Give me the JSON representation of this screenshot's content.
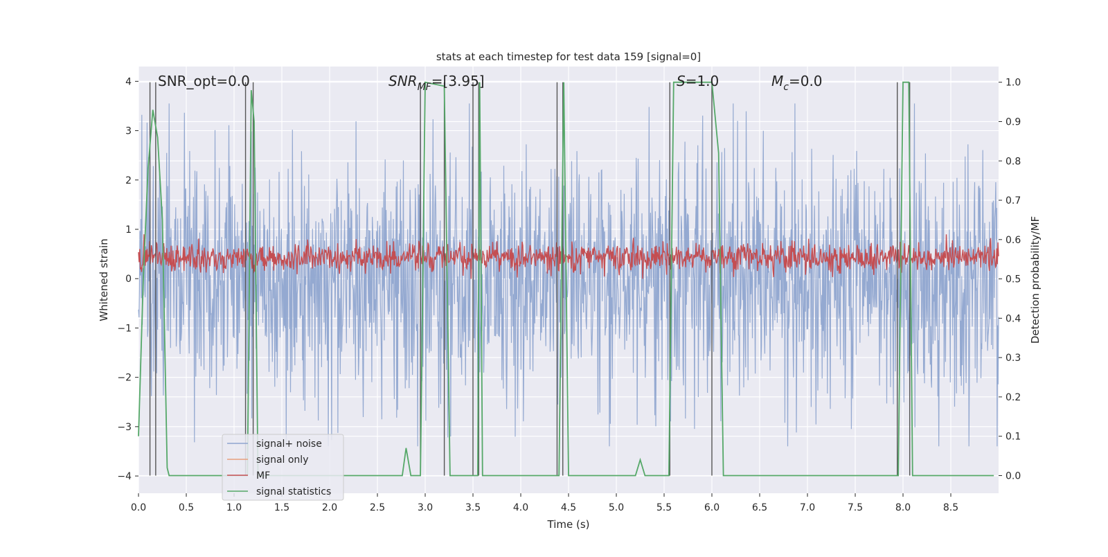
{
  "chart_data": {
    "type": "line",
    "title": "stats at each timestep for test data 159 [signal=0]",
    "xlabel": "Time (s)",
    "ylabel": "Whitened strain",
    "ylabel_right": "Detection probability/MF",
    "xlim": [
      0.0,
      9.0
    ],
    "ylim": [
      -4.35,
      4.3
    ],
    "ylim_right": [
      -0.045,
      1.04
    ],
    "x_ticks": [
      "0.0",
      "0.5",
      "1.0",
      "1.5",
      "2.0",
      "2.5",
      "3.0",
      "3.5",
      "4.0",
      "4.5",
      "5.0",
      "5.5",
      "6.0",
      "6.5",
      "7.0",
      "7.5",
      "8.0",
      "8.5"
    ],
    "y_ticks": [
      "4",
      "3",
      "2",
      "1",
      "0",
      "−1",
      "−2",
      "−3",
      "−4"
    ],
    "y_ticks_right": [
      "1.0",
      "0.9",
      "0.8",
      "0.7",
      "0.6",
      "0.5",
      "0.4",
      "0.3",
      "0.2",
      "0.1",
      "0.0"
    ],
    "grid": true,
    "legend_position": "lower-left",
    "annotations": {
      "snr_opt": "SNR_opt=0.0",
      "snr_mf_main": "SNR",
      "snr_mf_sub": "MF",
      "snr_mf_value": "=[3.95]",
      "s_main": "S",
      "s_value": "=1.0",
      "mc_main": "M",
      "mc_sub": "c",
      "mc_value": "=0.0"
    },
    "series": [
      {
        "name": "signal+ noise",
        "color": "#8fa5cf",
        "description_values": "noise-like whitened strain, roughly spanning -3.5 to 3.6"
      },
      {
        "name": "signal only",
        "color": "#e8a07c",
        "values": []
      },
      {
        "name": "MF",
        "color": "#c44e52",
        "description_values": "matched filter output on right axis, fluctuating around 0.52 to 0.60"
      },
      {
        "name": "signal statistics",
        "color": "#55a868",
        "x": [
          0.0,
          0.05,
          0.1,
          0.15,
          0.2,
          0.25,
          0.3,
          0.32,
          0.4,
          1.1,
          1.14,
          1.18,
          1.21,
          1.25,
          1.3,
          2.7,
          2.76,
          2.8,
          2.85,
          2.9,
          2.95,
          3.0,
          3.2,
          3.26,
          3.3,
          3.5,
          3.55,
          3.57,
          3.6,
          4.35,
          4.4,
          4.45,
          4.5,
          4.55,
          5.2,
          5.25,
          5.3,
          5.55,
          5.6,
          5.63,
          6.0,
          6.07,
          6.12,
          6.2,
          7.9,
          7.95,
          8.0,
          8.06,
          8.1,
          8.15,
          8.95
        ],
        "values": [
          0.1,
          0.5,
          0.78,
          0.93,
          0.86,
          0.65,
          0.02,
          0.0,
          0.0,
          0.0,
          0.0,
          0.98,
          0.9,
          0.0,
          0.0,
          0.0,
          0.0,
          0.07,
          0.0,
          0.0,
          0.0,
          1.0,
          0.99,
          0.0,
          0.0,
          0.0,
          0.0,
          1.0,
          0.0,
          0.0,
          0.0,
          1.0,
          0.0,
          0.0,
          0.0,
          0.04,
          0.0,
          0.0,
          1.0,
          1.0,
          1.0,
          0.82,
          0.0,
          0.0,
          0.0,
          0.0,
          1.0,
          1.0,
          0.0,
          0.0,
          0.0
        ]
      }
    ],
    "vertical_markers_x": [
      0.12,
      0.18,
      1.12,
      1.2,
      2.95,
      3.2,
      3.5,
      3.56,
      4.38,
      4.44,
      5.56,
      6.0,
      7.94,
      8.07
    ]
  }
}
